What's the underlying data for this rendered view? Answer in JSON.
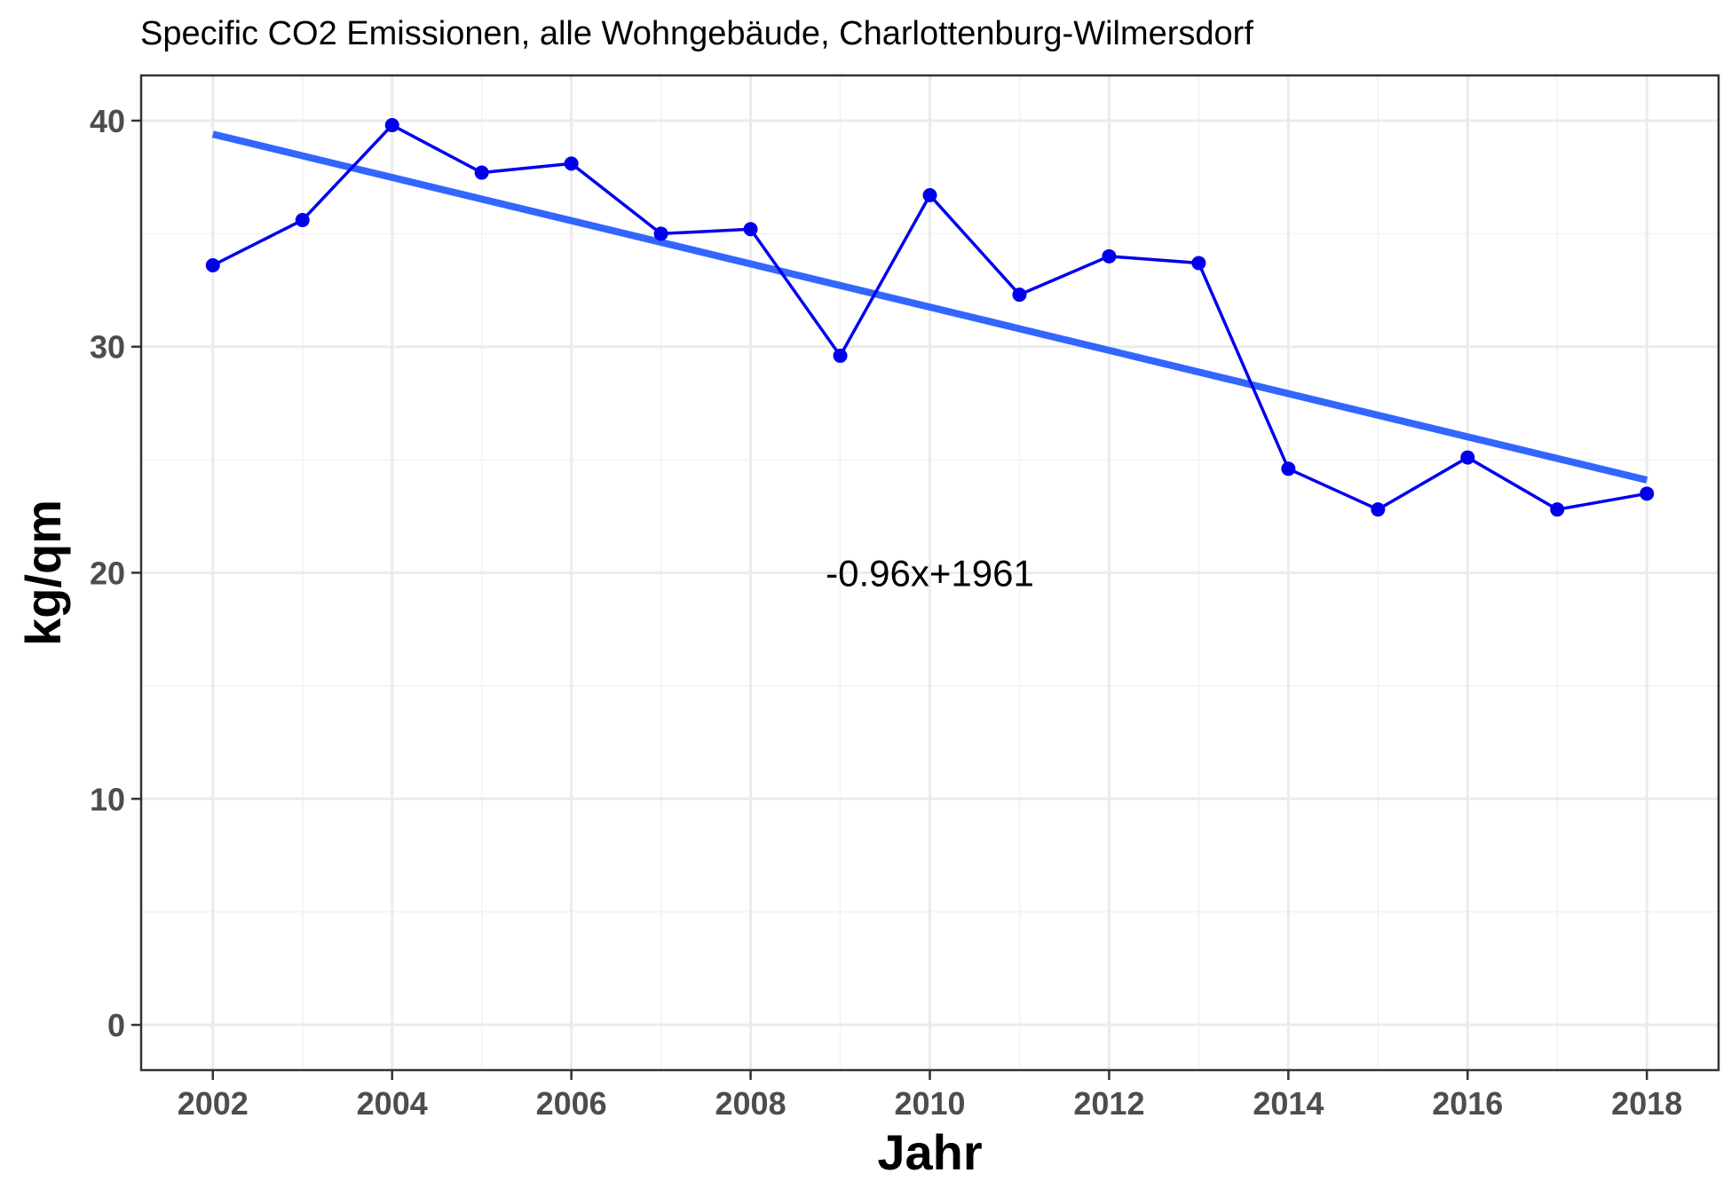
{
  "chart_data": {
    "type": "line",
    "title": "Specific CO2 Emissionen, alle Wohngebäude, Charlottenburg-Wilmersdorf",
    "xlabel": "Jahr",
    "ylabel": "kg/qm",
    "xlim": [
      2001.2,
      2018.8
    ],
    "ylim": [
      -2,
      42
    ],
    "x_ticks": [
      2002,
      2004,
      2006,
      2008,
      2010,
      2012,
      2014,
      2016,
      2018
    ],
    "y_ticks": [
      0,
      10,
      20,
      30,
      40
    ],
    "grid": true,
    "line_color": "#0000ee",
    "trend_color": "#3366ff",
    "series": [
      {
        "x": [
          2002,
          2003,
          2004,
          2005,
          2006,
          2007,
          2008,
          2009,
          2010,
          2011,
          2012,
          2013,
          2014,
          2015,
          2016,
          2017,
          2018
        ],
        "values": [
          33.6,
          35.6,
          39.8,
          37.7,
          38.1,
          35.0,
          35.2,
          29.6,
          36.7,
          32.3,
          34.0,
          33.7,
          24.6,
          22.8,
          25.1,
          22.8,
          23.5
        ]
      }
    ],
    "trend_line": {
      "x": [
        2002,
        2018
      ],
      "y": [
        39.4,
        24.1
      ]
    },
    "annotation": {
      "text": "-0.96x+1961",
      "x": 2010,
      "y": 20
    }
  }
}
